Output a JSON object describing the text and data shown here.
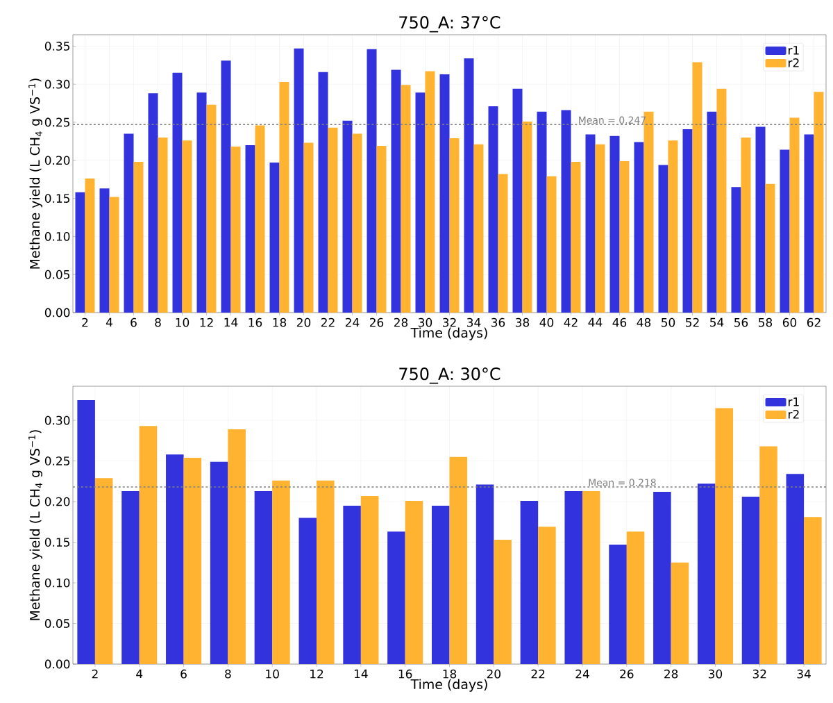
{
  "chart_data": [
    {
      "type": "bar",
      "title": "750_A: 37°C",
      "xlabel": "Time (days)",
      "ylabel": "Methane yield (L CH$_{4}$ g VS$^{−1}$)",
      "categories": [
        "2",
        "4",
        "6",
        "8",
        "10",
        "12",
        "14",
        "16",
        "18",
        "20",
        "22",
        "24",
        "26",
        "28",
        "30",
        "32",
        "34",
        "36",
        "38",
        "40",
        "42",
        "44",
        "46",
        "48",
        "50",
        "52",
        "54",
        "56",
        "58",
        "60",
        "62"
      ],
      "series": [
        {
          "name": "r1",
          "color": "#3333dd",
          "values": [
            0.158,
            0.163,
            0.235,
            0.288,
            0.315,
            0.289,
            0.331,
            0.22,
            0.197,
            0.347,
            0.316,
            0.252,
            0.346,
            0.319,
            0.289,
            0.313,
            0.334,
            0.271,
            0.294,
            0.264,
            0.266,
            0.234,
            0.232,
            0.224,
            0.194,
            0.241,
            0.264,
            0.165,
            0.244,
            0.214,
            0.234
          ]
        },
        {
          "name": "r2",
          "color": "#ffb330",
          "values": [
            0.176,
            0.152,
            0.198,
            0.23,
            0.226,
            0.273,
            0.218,
            0.246,
            0.303,
            0.223,
            0.243,
            0.235,
            0.219,
            0.299,
            0.317,
            0.229,
            0.221,
            0.182,
            0.251,
            0.179,
            0.198,
            0.221,
            0.199,
            0.264,
            0.226,
            0.329,
            0.294,
            0.23,
            0.169,
            0.256,
            0.29
          ]
        }
      ],
      "ylim": [
        0,
        0.365
      ],
      "yticks": [
        {
          "value": 0,
          "label": "0.00"
        },
        {
          "value": 0.05,
          "label": "0.05"
        },
        {
          "value": 0.1,
          "label": "0.10"
        },
        {
          "value": 0.15,
          "label": "0.15"
        },
        {
          "value": 0.2,
          "label": "0.20"
        },
        {
          "value": 0.25,
          "label": "0.25"
        },
        {
          "value": 0.3,
          "label": "0.30"
        },
        {
          "value": 0.35,
          "label": "0.35"
        }
      ],
      "ref_lines": [
        {
          "axis": "y",
          "value": 0.247,
          "label": "Mean = 0.247",
          "color": "#808080",
          "line_style": "dashed"
        }
      ],
      "grid": true,
      "legend": "top right"
    },
    {
      "type": "bar",
      "title": "750_A: 30°C",
      "xlabel": "Time (days)",
      "ylabel": "Methane yield (L CH$_{4}$ g VS$^{−1}$)",
      "categories": [
        "2",
        "4",
        "6",
        "8",
        "10",
        "12",
        "14",
        "16",
        "18",
        "20",
        "22",
        "24",
        "26",
        "28",
        "30",
        "32",
        "34"
      ],
      "series": [
        {
          "name": "r1",
          "color": "#3333dd",
          "values": [
            0.325,
            0.213,
            0.258,
            0.249,
            0.213,
            0.18,
            0.195,
            0.163,
            0.195,
            0.221,
            0.201,
            0.213,
            0.147,
            0.212,
            0.222,
            0.206,
            0.234
          ]
        },
        {
          "name": "r2",
          "color": "#ffb330",
          "values": [
            0.229,
            0.293,
            0.254,
            0.289,
            0.226,
            0.226,
            0.207,
            0.201,
            0.255,
            0.153,
            0.169,
            0.213,
            0.163,
            0.125,
            0.315,
            0.268,
            0.181
          ]
        }
      ],
      "ylim": [
        0,
        0.342
      ],
      "yticks": [
        {
          "value": 0,
          "label": "0.00"
        },
        {
          "value": 0.05,
          "label": "0.05"
        },
        {
          "value": 0.1,
          "label": "0.10"
        },
        {
          "value": 0.15,
          "label": "0.15"
        },
        {
          "value": 0.2,
          "label": "0.20"
        },
        {
          "value": 0.25,
          "label": "0.25"
        },
        {
          "value": 0.3,
          "label": "0.30"
        }
      ],
      "ref_lines": [
        {
          "axis": "y",
          "value": 0.218,
          "label": "Mean = 0.218",
          "color": "#808080",
          "line_style": "dashed"
        }
      ],
      "grid": true,
      "legend": "top right"
    }
  ]
}
